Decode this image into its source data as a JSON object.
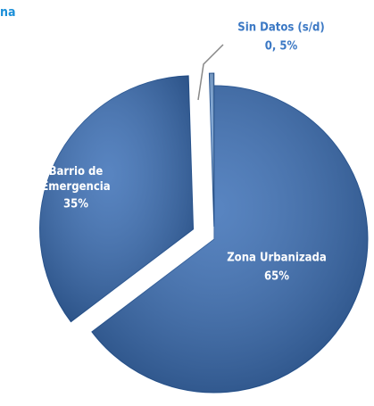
{
  "chart_data": {
    "type": "pie",
    "title": "na",
    "categories": [
      "Zona Urbanizada",
      "Barrio de Emergencia",
      "Sin Datos  (s/d)"
    ],
    "values": [
      65,
      35,
      0.5
    ],
    "value_labels": [
      "65%",
      "35%",
      "0, 5%"
    ],
    "colors": [
      "#3b6fb6",
      "#3b6fb6",
      "#7aa7dc"
    ]
  }
}
